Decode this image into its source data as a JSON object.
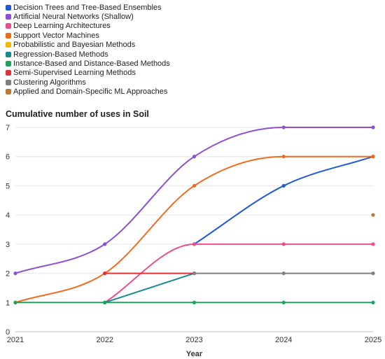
{
  "chart_data": {
    "type": "line",
    "title": "Cumulative number of uses in Soil",
    "xlabel": "Year",
    "ylabel": "",
    "x": [
      "2021",
      "2022",
      "2023",
      "2024",
      "2025"
    ],
    "y_ticks": [
      "0",
      "1",
      "2",
      "3",
      "4",
      "5",
      "6",
      "7"
    ],
    "ylim": [
      0,
      7
    ],
    "grid": "horizontal",
    "legend_position": "top-left",
    "series": [
      {
        "name": "Decision Trees and Tree-Based Ensembles",
        "color": "#1f5bd8",
        "values": [
          null,
          null,
          3,
          5,
          6
        ]
      },
      {
        "name": "Artificial Neural Networks (Shallow)",
        "color": "#8e4fd6",
        "values": [
          2,
          3,
          6,
          7,
          7
        ]
      },
      {
        "name": "Deep Learning Architectures",
        "color": "#e8508f",
        "values": [
          null,
          1,
          3,
          3,
          3
        ]
      },
      {
        "name": "Support Vector Machines",
        "color": "#f26b1d",
        "values": [
          1,
          2,
          5,
          6,
          6
        ]
      },
      {
        "name": "Probabilistic and Bayesian Methods",
        "color": "#f2b705",
        "values": [
          null,
          null,
          null,
          null,
          null
        ]
      },
      {
        "name": "Regression-Based Methods",
        "color": "#168a8c",
        "values": [
          null,
          1,
          2,
          null,
          null
        ]
      },
      {
        "name": "Instance-Based and Distance-Based Methods",
        "color": "#1fa35a",
        "values": [
          1,
          1,
          1,
          1,
          1
        ]
      },
      {
        "name": "Semi-Supervised Learning Methods",
        "color": "#e0303a",
        "values": [
          null,
          2,
          2,
          null,
          null
        ]
      },
      {
        "name": "Clustering Algorithms",
        "color": "#7f7f7f",
        "values": [
          null,
          null,
          2,
          2,
          2
        ]
      },
      {
        "name": "Applied and Domain-Specific ML Approaches",
        "color": "#c07a35",
        "values": [
          null,
          null,
          null,
          null,
          4
        ]
      }
    ]
  }
}
